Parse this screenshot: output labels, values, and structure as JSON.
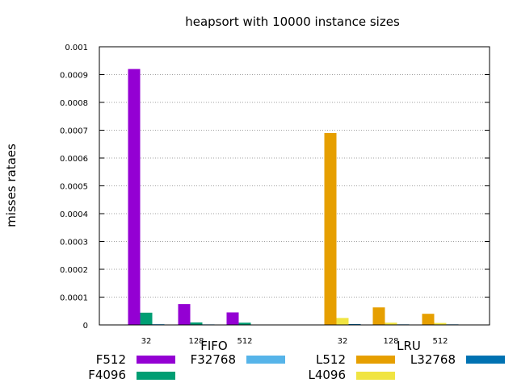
{
  "chart_data": {
    "type": "bar",
    "title": "heapsort with 10000 instance sizes",
    "ylabel": "misses rataes",
    "xlabel": "",
    "ylim": [
      0,
      0.001
    ],
    "yticks": [
      "0",
      "0.0001",
      "0.0002",
      "0.0003",
      "0.0004",
      "0.0005",
      "0.0006",
      "0.0007",
      "0.0008",
      "0.0009",
      "0.001"
    ],
    "grid": true,
    "legend_position": "bottom",
    "groups": [
      {
        "name": "FIFO",
        "categories": [
          "32",
          "128",
          "512"
        ]
      },
      {
        "name": "LRU",
        "categories": [
          "32",
          "128",
          "512"
        ]
      }
    ],
    "series": [
      {
        "name": "F512",
        "group": "FIFO",
        "color": "#9400d3",
        "values": [
          0.00092,
          7.5e-05,
          4.5e-05
        ]
      },
      {
        "name": "F4096",
        "group": "FIFO",
        "color": "#009e73",
        "values": [
          4.4e-05,
          9e-06,
          8e-06
        ]
      },
      {
        "name": "F32768",
        "group": "FIFO",
        "color": "#56b4e9",
        "values": [
          3e-06,
          2e-06,
          1e-06
        ]
      },
      {
        "name": "L512",
        "group": "LRU",
        "color": "#e69f00",
        "values": [
          0.00069,
          6.3e-05,
          4e-05
        ]
      },
      {
        "name": "L4096",
        "group": "LRU",
        "color": "#f0e442",
        "values": [
          2.5e-05,
          8e-06,
          7e-06
        ]
      },
      {
        "name": "L32768",
        "group": "LRU",
        "color": "#0072b2",
        "values": [
          3e-06,
          2e-06,
          2e-06
        ]
      }
    ]
  }
}
